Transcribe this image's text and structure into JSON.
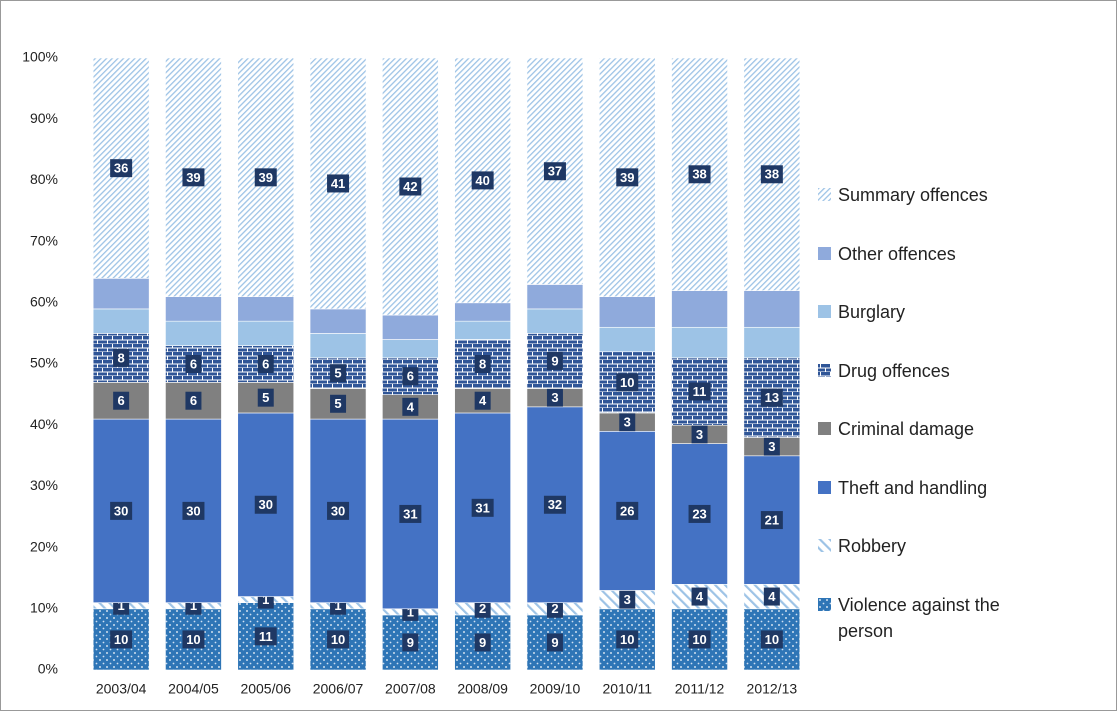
{
  "chart_data": {
    "type": "stacked_bar",
    "categories": [
      "2003/04",
      "2004/05",
      "2005/06",
      "2006/07",
      "2007/08",
      "2008/09",
      "2009/10",
      "2010/11",
      "2011/12",
      "2012/13"
    ],
    "ylim": [
      0,
      100
    ],
    "yticks": [
      {
        "value": 0,
        "label": "0%"
      },
      {
        "value": 10,
        "label": "10%"
      },
      {
        "value": 20,
        "label": "20%"
      },
      {
        "value": 30,
        "label": "30%"
      },
      {
        "value": 40,
        "label": "40%"
      },
      {
        "value": 50,
        "label": "50%"
      },
      {
        "value": 60,
        "label": "60%"
      },
      {
        "value": 70,
        "label": "70%"
      },
      {
        "value": 80,
        "label": "80%"
      },
      {
        "value": 90,
        "label": "90%"
      },
      {
        "value": 100,
        "label": "100%"
      }
    ],
    "legend": "right",
    "series": [
      {
        "name": "Violence against the person",
        "color": "#2e75b6",
        "pattern": "dots",
        "data_labels": true,
        "values": [
          10,
          10,
          11,
          10,
          9,
          9,
          9,
          10,
          10,
          10
        ]
      },
      {
        "name": "Robbery",
        "color": "#9dc3e6",
        "pattern": "hatch",
        "data_labels": true,
        "values": [
          1,
          1,
          1,
          1,
          1,
          2,
          2,
          3,
          4,
          4
        ]
      },
      {
        "name": "Theft and handling",
        "color": "#4472c4",
        "pattern": "solid",
        "data_labels": true,
        "values": [
          30,
          30,
          30,
          30,
          31,
          31,
          32,
          26,
          23,
          21
        ]
      },
      {
        "name": "Criminal damage",
        "color": "#808080",
        "pattern": "solid",
        "data_labels": true,
        "values": [
          6,
          6,
          5,
          5,
          4,
          4,
          3,
          3,
          3,
          3
        ]
      },
      {
        "name": "Drug offences",
        "color": "#2f5597",
        "pattern": "brick",
        "data_labels": true,
        "values": [
          8,
          6,
          6,
          5,
          6,
          8,
          9,
          10,
          11,
          13
        ]
      },
      {
        "name": "Burglary",
        "color": "#9dc3e6",
        "pattern": "solid",
        "data_labels": false,
        "values": [
          4,
          4,
          4,
          4,
          3,
          3,
          4,
          4,
          5,
          5
        ]
      },
      {
        "name": "Other offences",
        "color": "#8faadc",
        "pattern": "solid",
        "data_labels": false,
        "values": [
          5,
          4,
          4,
          4,
          4,
          3,
          4,
          5,
          6,
          6
        ]
      },
      {
        "name": "Summary offences",
        "color": "#9dc3e6",
        "pattern": "finehatch",
        "data_labels": true,
        "values": [
          36,
          39,
          39,
          41,
          42,
          40,
          37,
          39,
          38,
          38
        ]
      }
    ]
  }
}
